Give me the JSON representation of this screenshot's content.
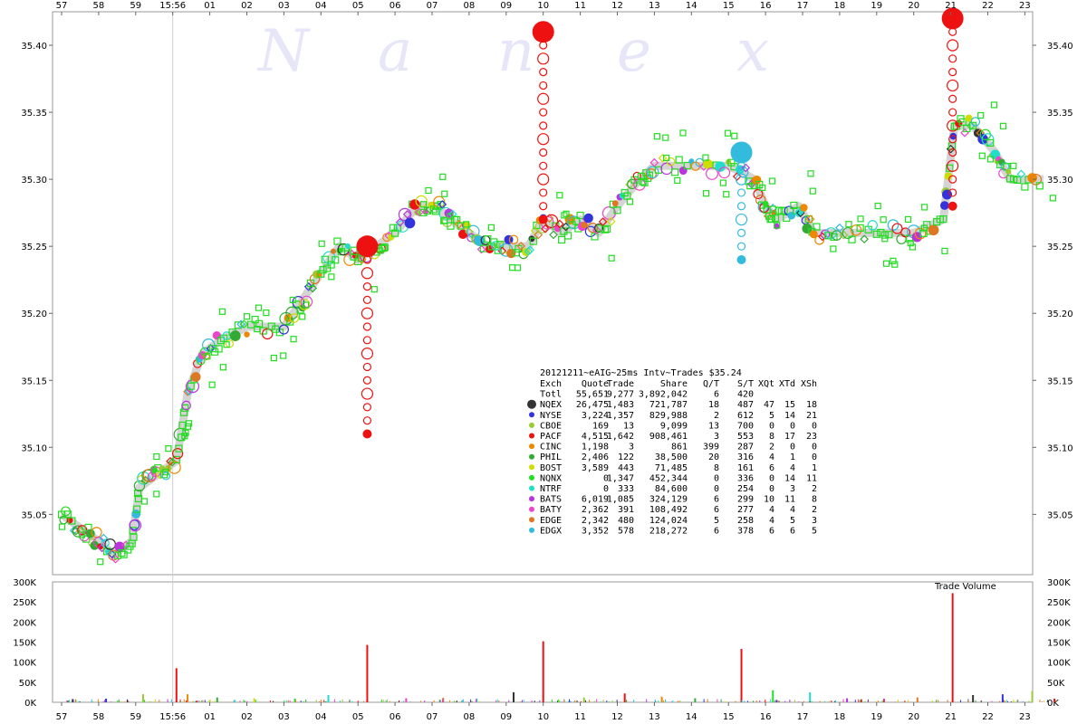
{
  "chart_data": {
    "type": "scatter",
    "watermark": "Nanex",
    "x_tick_labels": [
      "57",
      "58",
      "59",
      "15:56",
      "01",
      "02",
      "03",
      "04",
      "05",
      "06",
      "07",
      "08",
      "09",
      "10",
      "11",
      "12",
      "13",
      "14",
      "15",
      "16",
      "17",
      "18",
      "19",
      "20",
      "21",
      "22",
      "23"
    ],
    "y_ticks": [
      "35.05",
      "35.10",
      "35.15",
      "35.20",
      "35.25",
      "35.30",
      "35.35",
      "35.40"
    ],
    "y_values": [
      35.05,
      35.1,
      35.15,
      35.2,
      35.25,
      35.3,
      35.35,
      35.4
    ],
    "ylim": [
      35.005,
      35.425
    ],
    "price_line": [
      [
        0,
        35.05
      ],
      [
        0.5,
        35.04
      ],
      [
        1,
        35.03
      ],
      [
        1.4,
        35.02
      ],
      [
        1.9,
        35.03
      ],
      [
        2.1,
        35.07
      ],
      [
        2.6,
        35.08
      ],
      [
        3.1,
        35.09
      ],
      [
        3.4,
        35.14
      ],
      [
        3.8,
        35.17
      ],
      [
        4.3,
        35.18
      ],
      [
        5.0,
        35.19
      ],
      [
        6.0,
        35.19
      ],
      [
        6.5,
        35.21
      ],
      [
        7.0,
        35.23
      ],
      [
        7.5,
        35.25
      ],
      [
        8.0,
        35.24
      ],
      [
        8.5,
        35.25
      ],
      [
        9.0,
        35.26
      ],
      [
        9.6,
        35.28
      ],
      [
        10.1,
        35.28
      ],
      [
        10.5,
        35.27
      ],
      [
        11.0,
        35.26
      ],
      [
        11.5,
        35.25
      ],
      [
        12.0,
        35.25
      ],
      [
        12.6,
        35.25
      ],
      [
        13.0,
        35.27
      ],
      [
        13.5,
        35.26
      ],
      [
        14.0,
        35.27
      ],
      [
        14.5,
        35.26
      ],
      [
        15.0,
        35.28
      ],
      [
        15.6,
        35.3
      ],
      [
        16.0,
        35.31
      ],
      [
        17.0,
        35.31
      ],
      [
        18.0,
        35.31
      ],
      [
        18.7,
        35.3
      ],
      [
        19.0,
        35.28
      ],
      [
        19.3,
        35.27
      ],
      [
        19.9,
        35.28
      ],
      [
        20.3,
        35.26
      ],
      [
        21.0,
        35.26
      ],
      [
        22.0,
        35.26
      ],
      [
        23.0,
        35.26
      ],
      [
        23.8,
        35.27
      ],
      [
        24.1,
        35.34
      ],
      [
        24.6,
        35.34
      ],
      [
        25.2,
        35.32
      ],
      [
        25.6,
        35.3
      ],
      [
        26.5,
        35.3
      ]
    ],
    "spikes": [
      {
        "x": 8.25,
        "low": 35.11,
        "high": 35.25,
        "exchange": "PACF"
      },
      {
        "x": 13.0,
        "low": 35.27,
        "high": 35.41,
        "exchange": "PACF"
      },
      {
        "x": 18.35,
        "low": 35.24,
        "high": 35.32,
        "exchange": "EDGX"
      },
      {
        "x": 24.05,
        "low": 35.28,
        "high": 35.42,
        "exchange": "PACF"
      }
    ],
    "table": {
      "title": "20121211~eAIG~25ms Intv~Trades $35.24",
      "columns": [
        "Exch",
        "Quote",
        "Trade",
        "Share",
        "Q/T",
        "S/T",
        "XQt",
        "XTd",
        "XSh"
      ],
      "rows": [
        {
          "exch": "Totl",
          "quote": "55,651",
          "trade": "9,277",
          "share": "3,892,042",
          "qt": "6",
          "st": "420",
          "xqt": "",
          "xtd": "",
          "xsh": "",
          "color": ""
        },
        {
          "exch": "NQEX",
          "quote": "26,475",
          "trade": "1,483",
          "share": "721,787",
          "qt": "18",
          "st": "487",
          "xqt": "47",
          "xtd": "15",
          "xsh": "18",
          "color": "#333333"
        },
        {
          "exch": "NYSE",
          "quote": "3,224",
          "trade": "1,357",
          "share": "829,988",
          "qt": "2",
          "st": "612",
          "xqt": "5",
          "xtd": "14",
          "xsh": "21",
          "color": "#3333dd"
        },
        {
          "exch": "CBOE",
          "quote": "169",
          "trade": "13",
          "share": "9,099",
          "qt": "13",
          "st": "700",
          "xqt": "0",
          "xtd": "0",
          "xsh": "0",
          "color": "#99cc33"
        },
        {
          "exch": "PACF",
          "quote": "4,515",
          "trade": "1,642",
          "share": "908,461",
          "qt": "3",
          "st": "553",
          "xqt": "8",
          "xtd": "17",
          "xsh": "23",
          "color": "#ee1111"
        },
        {
          "exch": "CINC",
          "quote": "1,198",
          "trade": "3",
          "share": "861",
          "qt": "399",
          "st": "287",
          "xqt": "2",
          "xtd": "0",
          "xsh": "0",
          "color": "#ee8800"
        },
        {
          "exch": "PHIL",
          "quote": "2,406",
          "trade": "122",
          "share": "38,500",
          "qt": "20",
          "st": "316",
          "xqt": "4",
          "xtd": "1",
          "xsh": "0",
          "color": "#33aa33"
        },
        {
          "exch": "BOST",
          "quote": "3,589",
          "trade": "443",
          "share": "71,485",
          "qt": "8",
          "st": "161",
          "xqt": "6",
          "xtd": "4",
          "xsh": "1",
          "color": "#ccdd00"
        },
        {
          "exch": "NQNX",
          "quote": "0",
          "trade": "1,347",
          "share": "452,344",
          "qt": "0",
          "st": "336",
          "xqt": "0",
          "xtd": "14",
          "xsh": "11",
          "color": "#22dd22"
        },
        {
          "exch": "NTRF",
          "quote": "0",
          "trade": "333",
          "share": "84,600",
          "qt": "0",
          "st": "254",
          "xqt": "0",
          "xtd": "3",
          "xsh": "2",
          "color": "#22ddcc"
        },
        {
          "exch": "BATS",
          "quote": "6,019",
          "trade": "1,085",
          "share": "324,129",
          "qt": "6",
          "st": "299",
          "xqt": "10",
          "xtd": "11",
          "xsh": "8",
          "color": "#bb33dd"
        },
        {
          "exch": "BATY",
          "quote": "2,362",
          "trade": "391",
          "share": "108,492",
          "qt": "6",
          "st": "277",
          "xqt": "4",
          "xtd": "4",
          "xsh": "2",
          "color": "#ee44cc"
        },
        {
          "exch": "EDGE",
          "quote": "2,342",
          "trade": "480",
          "share": "124,024",
          "qt": "5",
          "st": "258",
          "xqt": "4",
          "xtd": "5",
          "xsh": "3",
          "color": "#dd7722"
        },
        {
          "exch": "EDGX",
          "quote": "3,352",
          "trade": "578",
          "share": "218,272",
          "qt": "6",
          "st": "378",
          "xqt": "6",
          "xtd": "6",
          "xsh": "5",
          "color": "#33bbdd"
        }
      ]
    },
    "volume": {
      "label": "Trade Volume",
      "y_ticks": [
        "0K",
        "50K",
        "100K",
        "150K",
        "200K",
        "250K",
        "300K"
      ],
      "y_values": [
        0,
        50000,
        100000,
        150000,
        200000,
        250000,
        300000
      ],
      "ylim": [
        0,
        300000
      ],
      "bars": [
        {
          "x": 0.3,
          "v": 8000
        },
        {
          "x": 1.2,
          "v": 9000
        },
        {
          "x": 2.2,
          "v": 20000
        },
        {
          "x": 3.1,
          "v": 85000
        },
        {
          "x": 3.4,
          "v": 20000
        },
        {
          "x": 4.2,
          "v": 12000
        },
        {
          "x": 5.2,
          "v": 10000
        },
        {
          "x": 6.3,
          "v": 9000
        },
        {
          "x": 7.2,
          "v": 18000
        },
        {
          "x": 8.25,
          "v": 143000
        },
        {
          "x": 9.3,
          "v": 10000
        },
        {
          "x": 10.3,
          "v": 11000
        },
        {
          "x": 11.2,
          "v": 9000
        },
        {
          "x": 12.2,
          "v": 25000
        },
        {
          "x": 13.0,
          "v": 152000
        },
        {
          "x": 14.1,
          "v": 12000
        },
        {
          "x": 15.2,
          "v": 22000
        },
        {
          "x": 16.2,
          "v": 14000
        },
        {
          "x": 17.1,
          "v": 10000
        },
        {
          "x": 18.35,
          "v": 133000
        },
        {
          "x": 19.2,
          "v": 30000
        },
        {
          "x": 20.2,
          "v": 25000
        },
        {
          "x": 21.2,
          "v": 10000
        },
        {
          "x": 22.2,
          "v": 9000
        },
        {
          "x": 23.1,
          "v": 12000
        },
        {
          "x": 24.05,
          "v": 272000
        },
        {
          "x": 24.6,
          "v": 18000
        },
        {
          "x": 25.4,
          "v": 20000
        },
        {
          "x": 26.2,
          "v": 28000
        },
        {
          "x": 26.8,
          "v": 9000
        }
      ]
    }
  }
}
